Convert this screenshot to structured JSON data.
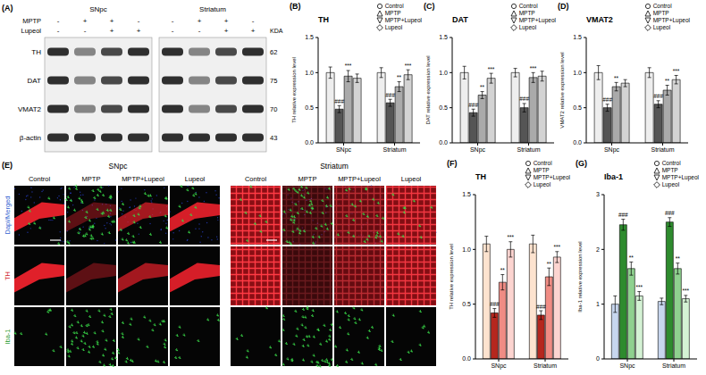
{
  "blot": {
    "letter": "(A)",
    "regions": [
      "SNpc",
      "Striatum"
    ],
    "treatments": [
      {
        "name": "MPTP",
        "signs": [
          "-",
          "+",
          "+",
          "-"
        ]
      },
      {
        "name": "Lupeol",
        "signs": [
          "-",
          "-",
          "+",
          "+"
        ]
      }
    ],
    "kda_label": "KDA",
    "proteins": [
      {
        "name": "TH",
        "kda": "62"
      },
      {
        "name": "DAT",
        "kda": "75"
      },
      {
        "name": "VMAT2",
        "kda": "70"
      },
      {
        "name": "β-actin",
        "kda": "43"
      }
    ]
  },
  "images": {
    "letter": "(E)",
    "regions": [
      "SNpc",
      "Striatum"
    ],
    "groups": [
      "Control",
      "MPTP",
      "MPTP+Lupeol",
      "Lupeol"
    ],
    "rows": [
      "Dapi/Merged",
      "TH",
      "Iba-1"
    ]
  },
  "chart_data": [
    {
      "type": "bar",
      "letter": "(B)",
      "title": "TH",
      "y_label": "TH relative expression level",
      "categories": [
        "SNpc",
        "Striatum"
      ],
      "ylim": [
        0,
        1.5
      ],
      "yticks": [
        {
          "value": 0,
          "label": "0.0"
        },
        {
          "value": 0.5,
          "label": "0.5"
        },
        {
          "value": 1,
          "label": "1.0"
        },
        {
          "value": 1.5,
          "label": "1.5"
        }
      ],
      "legend": "top-right",
      "series": [
        {
          "name": "Control",
          "color": "#eeeeee",
          "marker": "circle",
          "values": [
            1.0,
            1.0
          ],
          "errors": [
            0.08,
            0.07
          ],
          "annotations": [
            null,
            null
          ]
        },
        {
          "name": "MPTP",
          "color": "#555555",
          "marker": "triangle",
          "values": [
            0.48,
            0.57
          ],
          "errors": [
            0.05,
            0.05
          ],
          "annotations": [
            "###",
            "###"
          ]
        },
        {
          "name": "MPTP+Lupeol",
          "color": "#aaaaaa",
          "marker": "triangle-down",
          "values": [
            0.95,
            0.8
          ],
          "errors": [
            0.08,
            0.07
          ],
          "annotations": [
            "***",
            "**"
          ]
        },
        {
          "name": "Lupeol",
          "color": "#d3d3d3",
          "marker": "diamond",
          "values": [
            0.92,
            0.97
          ],
          "errors": [
            0.06,
            0.07
          ],
          "annotations": [
            null,
            "***"
          ]
        }
      ]
    },
    {
      "type": "bar",
      "letter": "(C)",
      "title": "DAT",
      "y_label": "DAT relative expression level",
      "categories": [
        "SNpc",
        "Striatum"
      ],
      "ylim": [
        0,
        1.5
      ],
      "yticks": [
        {
          "value": 0,
          "label": "0.0"
        },
        {
          "value": 0.5,
          "label": "0.5"
        },
        {
          "value": 1,
          "label": "1.0"
        },
        {
          "value": 1.5,
          "label": "1.5"
        }
      ],
      "legend": "top-right",
      "series": [
        {
          "name": "Control",
          "color": "#eeeeee",
          "marker": "circle",
          "values": [
            1.0,
            1.0
          ],
          "errors": [
            0.09,
            0.06
          ],
          "annotations": [
            null,
            null
          ]
        },
        {
          "name": "MPTP",
          "color": "#555555",
          "marker": "triangle",
          "values": [
            0.43,
            0.5
          ],
          "errors": [
            0.05,
            0.06
          ],
          "annotations": [
            "###",
            "###"
          ]
        },
        {
          "name": "MPTP+Lupeol",
          "color": "#aaaaaa",
          "marker": "triangle-down",
          "values": [
            0.68,
            0.93
          ],
          "errors": [
            0.05,
            0.07
          ],
          "annotations": [
            "**",
            "***"
          ]
        },
        {
          "name": "Lupeol",
          "color": "#d3d3d3",
          "marker": "diamond",
          "values": [
            0.92,
            0.95
          ],
          "errors": [
            0.07,
            0.07
          ],
          "annotations": [
            "***",
            null
          ]
        }
      ]
    },
    {
      "type": "bar",
      "letter": "(D)",
      "title": "VMAT2",
      "y_label": "VMAT2 relative expression level",
      "categories": [
        "SNpc",
        "Striatum"
      ],
      "ylim": [
        0,
        1.5
      ],
      "yticks": [
        {
          "value": 0,
          "label": "0.0"
        },
        {
          "value": 0.5,
          "label": "0.5"
        },
        {
          "value": 1,
          "label": "1.0"
        },
        {
          "value": 1.5,
          "label": "1.5"
        }
      ],
      "legend": "top-right",
      "series": [
        {
          "name": "Control",
          "color": "#eeeeee",
          "marker": "circle",
          "values": [
            1.0,
            1.0
          ],
          "errors": [
            0.1,
            0.07
          ],
          "annotations": [
            null,
            null
          ]
        },
        {
          "name": "MPTP",
          "color": "#555555",
          "marker": "triangle",
          "values": [
            0.5,
            0.55
          ],
          "errors": [
            0.05,
            0.05
          ],
          "annotations": [
            "###",
            "###"
          ]
        },
        {
          "name": "MPTP+Lupeol",
          "color": "#aaaaaa",
          "marker": "triangle-down",
          "values": [
            0.8,
            0.75
          ],
          "errors": [
            0.06,
            0.07
          ],
          "annotations": [
            "**",
            "**"
          ]
        },
        {
          "name": "Lupeol",
          "color": "#d3d3d3",
          "marker": "diamond",
          "values": [
            0.85,
            0.9
          ],
          "errors": [
            0.05,
            0.06
          ],
          "annotations": [
            null,
            "***"
          ]
        }
      ]
    },
    {
      "type": "bar",
      "letter": "(F)",
      "title": "TH",
      "y_label": "TH relative expression level",
      "categories": [
        "SNpc",
        "Striatum"
      ],
      "ylim": [
        0,
        1.5
      ],
      "yticks": [
        {
          "value": 0,
          "label": "0.0"
        },
        {
          "value": 0.5,
          "label": "0.5"
        },
        {
          "value": 1,
          "label": "1.0"
        },
        {
          "value": 1.5,
          "label": "1.5"
        }
      ],
      "legend": "top-right",
      "series": [
        {
          "name": "Control",
          "color": "#fde3cf",
          "marker": "circle",
          "values": [
            1.05,
            1.05
          ],
          "errors": [
            0.07,
            0.08
          ],
          "annotations": [
            null,
            null
          ]
        },
        {
          "name": "MPTP",
          "color": "#b5271e",
          "marker": "triangle",
          "values": [
            0.42,
            0.4
          ],
          "errors": [
            0.04,
            0.04
          ],
          "annotations": [
            "###",
            "###"
          ]
        },
        {
          "name": "MPTP+Lupeol",
          "color": "#f08c84",
          "marker": "triangle-down",
          "values": [
            0.7,
            0.75
          ],
          "errors": [
            0.07,
            0.08
          ],
          "annotations": [
            "**",
            "**"
          ]
        },
        {
          "name": "Lupeol",
          "color": "#fcd4d0",
          "marker": "diamond",
          "values": [
            1.0,
            0.93
          ],
          "errors": [
            0.07,
            0.05
          ],
          "annotations": [
            "***",
            "***"
          ]
        }
      ]
    },
    {
      "type": "bar",
      "letter": "(G)",
      "title": "Iba-1",
      "y_label": "Iba-1 relative expression level",
      "categories": [
        "SNpc",
        "Striatum"
      ],
      "ylim": [
        0,
        3
      ],
      "yticks": [
        0,
        1,
        2,
        3
      ],
      "legend": "top-right",
      "series": [
        {
          "name": "Control",
          "color": "#c7d6ee",
          "marker": "circle",
          "values": [
            1.0,
            1.05
          ],
          "errors": [
            0.15,
            0.06
          ],
          "annotations": [
            null,
            null
          ]
        },
        {
          "name": "MPTP",
          "color": "#2e8b2e",
          "marker": "triangle",
          "values": [
            2.45,
            2.5
          ],
          "errors": [
            0.1,
            0.08
          ],
          "annotations": [
            "###",
            "###"
          ]
        },
        {
          "name": "MPTP+Lupeol",
          "color": "#8fd18f",
          "marker": "triangle-down",
          "values": [
            1.65,
            1.65
          ],
          "errors": [
            0.12,
            0.1
          ],
          "annotations": [
            "**",
            "**"
          ]
        },
        {
          "name": "Lupeol",
          "color": "#d4f2d4",
          "marker": "diamond",
          "values": [
            1.15,
            1.1
          ],
          "errors": [
            0.08,
            0.06
          ],
          "annotations": [
            "***",
            "***"
          ]
        }
      ]
    }
  ]
}
